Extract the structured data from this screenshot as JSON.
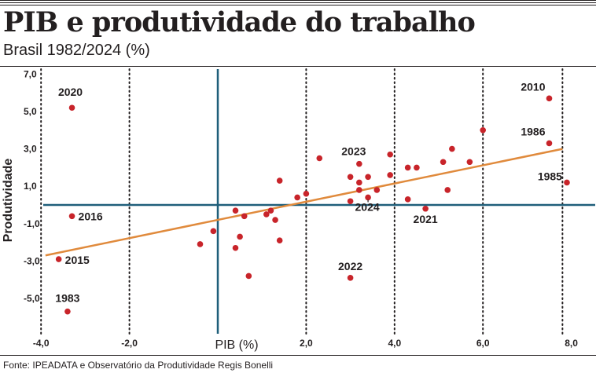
{
  "header": {
    "title": "PIB e produtividade do trabalho",
    "subtitle": "Brasil 1982/2024 (%)"
  },
  "footer": {
    "source": "Fonte: IPEADATA e Observatório da Produtividade Regis Bonelli"
  },
  "colors": {
    "point": "#c8242a",
    "trend": "#e08a3c",
    "axis": "#1f5f7a",
    "text": "#231f20"
  },
  "chart_data": {
    "type": "scatter",
    "title": "PIB e produtividade do trabalho",
    "subtitle": "Brasil 1982/2024 (%)",
    "xlabel": "PIB (%)",
    "ylabel": "Produtividade",
    "xlim": [
      -4.2,
      8.1
    ],
    "ylim": [
      -6.5,
      7.3
    ],
    "x_ticks": [
      -4,
      -2,
      2,
      4,
      6,
      8
    ],
    "x_tick_labels": [
      "-4,0",
      "-2,0",
      "2,0",
      "4,0",
      "6,0",
      "8,0"
    ],
    "y_ticks": [
      7,
      5,
      3,
      1,
      -1,
      -3,
      -5
    ],
    "y_tick_labels": [
      "7,0",
      "5,0",
      "3,0",
      "1,0",
      "-1,0",
      "-3,0",
      "-5,0"
    ],
    "dotted_gridlines_x": [
      -4,
      -2,
      2,
      4,
      6,
      7.8
    ],
    "reference_lines": {
      "x": 0,
      "y": 0
    },
    "trend_line": [
      {
        "x": -3.9,
        "y": -2.7
      },
      {
        "x": 7.8,
        "y": 3.0
      }
    ],
    "points": [
      {
        "x": 7.5,
        "y": 5.7,
        "label": "2010"
      },
      {
        "x": 7.5,
        "y": 3.3,
        "label": "1986"
      },
      {
        "x": 7.9,
        "y": 1.2,
        "label": "1985"
      },
      {
        "x": -3.3,
        "y": 5.2,
        "label": "2020"
      },
      {
        "x": -3.3,
        "y": -0.6,
        "label": "2016"
      },
      {
        "x": -3.6,
        "y": -2.9,
        "label": "2015"
      },
      {
        "x": -3.4,
        "y": -5.7,
        "label": "1983"
      },
      {
        "x": 3.2,
        "y": 2.2,
        "label": "2023"
      },
      {
        "x": 3.4,
        "y": 0.4,
        "label": "2024"
      },
      {
        "x": 4.7,
        "y": -0.2,
        "label": "2021"
      },
      {
        "x": 3.0,
        "y": -3.9,
        "label": "2022"
      },
      {
        "x": 6.0,
        "y": 4.0
      },
      {
        "x": 5.3,
        "y": 3.0
      },
      {
        "x": 5.7,
        "y": 2.3
      },
      {
        "x": 5.1,
        "y": 2.3
      },
      {
        "x": 4.3,
        "y": 2.0
      },
      {
        "x": 4.5,
        "y": 2.0
      },
      {
        "x": 3.9,
        "y": 2.7
      },
      {
        "x": 3.9,
        "y": 1.6
      },
      {
        "x": 3.0,
        "y": 1.5
      },
      {
        "x": 3.4,
        "y": 1.5
      },
      {
        "x": 3.2,
        "y": 1.2
      },
      {
        "x": 3.2,
        "y": 0.8
      },
      {
        "x": 3.6,
        "y": 0.8
      },
      {
        "x": 3.0,
        "y": 0.2
      },
      {
        "x": 4.3,
        "y": 0.3
      },
      {
        "x": 5.2,
        "y": 0.8
      },
      {
        "x": 2.3,
        "y": 2.5
      },
      {
        "x": 2.0,
        "y": 0.6
      },
      {
        "x": 1.8,
        "y": 0.4
      },
      {
        "x": 1.4,
        "y": 1.3
      },
      {
        "x": 1.2,
        "y": -0.3
      },
      {
        "x": 1.3,
        "y": -0.8
      },
      {
        "x": 1.1,
        "y": -0.5
      },
      {
        "x": 0.4,
        "y": -0.3
      },
      {
        "x": 0.6,
        "y": -0.6
      },
      {
        "x": 0.5,
        "y": -1.7
      },
      {
        "x": 0.4,
        "y": -2.3
      },
      {
        "x": 1.4,
        "y": -1.9
      },
      {
        "x": -0.1,
        "y": -1.4
      },
      {
        "x": -0.4,
        "y": -2.1
      },
      {
        "x": 0.7,
        "y": -3.8
      }
    ]
  }
}
